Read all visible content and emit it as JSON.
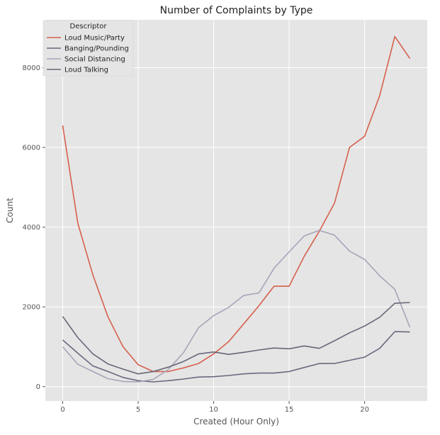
{
  "chart_data": {
    "type": "line",
    "title": "Number of Complaints by Type",
    "xlabel": "Created (Hour Only)",
    "ylabel": "Count",
    "xlim": [
      -1.15,
      24.15
    ],
    "ylim": [
      -360,
      9200
    ],
    "xticks": [
      0,
      5,
      10,
      15,
      20
    ],
    "yticks": [
      0,
      2000,
      4000,
      6000,
      8000
    ],
    "grid": true,
    "legend": {
      "title": "Descriptor",
      "placement": "top-left"
    },
    "x": [
      0,
      1,
      2,
      3,
      4,
      5,
      6,
      7,
      8,
      9,
      10,
      11,
      12,
      13,
      14,
      15,
      16,
      17,
      18,
      19,
      20,
      21,
      22,
      23
    ],
    "series": [
      {
        "name": "Loud Music/Party",
        "color": "#d6604d",
        "values": [
          6550,
          4100,
          2800,
          1750,
          1000,
          550,
          380,
          380,
          470,
          580,
          820,
          1130,
          1580,
          2030,
          2520,
          2520,
          3270,
          3900,
          4600,
          6000,
          6280,
          7300,
          8780,
          8230
        ]
      },
      {
        "name": "Banging/Pounding",
        "color": "#6b6880",
        "values": [
          1170,
          840,
          520,
          380,
          230,
          150,
          120,
          150,
          190,
          240,
          250,
          280,
          320,
          340,
          340,
          380,
          480,
          580,
          580,
          660,
          740,
          960,
          1380,
          1370
        ]
      },
      {
        "name": "Social Distancing",
        "color": "#a7a4b8",
        "values": [
          1000,
          560,
          380,
          200,
          130,
          120,
          180,
          430,
          850,
          1480,
          1780,
          1990,
          2290,
          2350,
          2970,
          3380,
          3780,
          3920,
          3800,
          3400,
          3190,
          2780,
          2440,
          1490
        ]
      },
      {
        "name": "Loud Talking",
        "color": "#666878",
        "values": [
          1760,
          1230,
          820,
          570,
          440,
          320,
          380,
          490,
          630,
          820,
          870,
          810,
          860,
          920,
          970,
          950,
          1020,
          960,
          1150,
          1350,
          1520,
          1740,
          2090,
          2110
        ]
      }
    ]
  }
}
